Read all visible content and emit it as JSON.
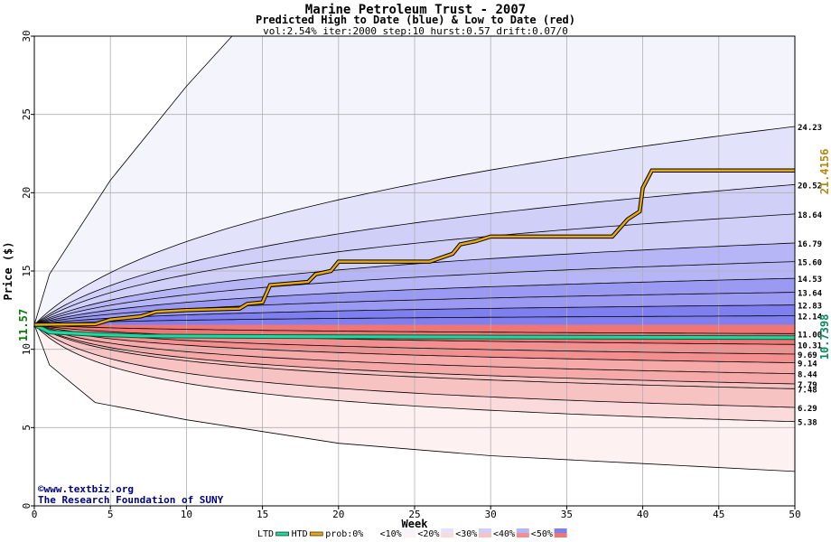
{
  "header": {
    "title": "Marine Petroleum Trust - 2007",
    "subtitle": "Predicted High to Date (blue) &  Low to Date (red)",
    "params": "vol:2.54% iter:2000 step:10 hurst:0.57 drift:0.07/0"
  },
  "footer": {
    "copyright": "©www.textbiz.org",
    "org": "The Research Foundation of SUNY"
  },
  "colors": {
    "upper_bands": [
      "#f4f4fc",
      "#e2e2fb",
      "#cfcff8",
      "#b6b6f6",
      "#9a9af3",
      "#7f7ff0"
    ],
    "lower_bands": [
      "#fdf1f1",
      "#fadada",
      "#f7c2c2",
      "#f5a9a9",
      "#f38f8f",
      "#f07676"
    ],
    "htd_line": "#e8a810",
    "ltd_line": "#20d8a0",
    "start_label": "#0a7a0a",
    "htd_label": "#b8860b",
    "ltd_label": "#0a8a5a"
  },
  "chart_data": {
    "type": "line",
    "title": "Marine Petroleum Trust - 2007",
    "xlabel": "Week",
    "ylabel": "Price ($)",
    "xlim": [
      0,
      50
    ],
    "ylim": [
      0,
      30
    ],
    "x_ticks": [
      0,
      5,
      10,
      15,
      20,
      25,
      30,
      35,
      40,
      45,
      50
    ],
    "y_ticks": [
      0,
      5,
      10,
      15,
      20,
      25,
      30
    ],
    "grid": true,
    "start_price": 11.57,
    "start_label": "11.57",
    "htd_final_label": "21.4156",
    "ltd_final_label": "10.7398",
    "quantile_labels": [
      {
        "label": "24.23",
        "value": 24.23
      },
      {
        "label": "20.52",
        "value": 20.52
      },
      {
        "label": "18.64",
        "value": 18.64
      },
      {
        "label": "16.79",
        "value": 16.79
      },
      {
        "label": "15.60",
        "value": 15.6
      },
      {
        "label": "14.53",
        "value": 14.53
      },
      {
        "label": "13.64",
        "value": 13.64
      },
      {
        "label": "12.83",
        "value": 12.83
      },
      {
        "label": "12.14",
        "value": 12.14
      },
      {
        "label": "11.00",
        "value": 11.0
      },
      {
        "label": "10.31",
        "value": 10.31
      },
      {
        "label": "9.69",
        "value": 9.69
      },
      {
        "label": "9.14",
        "value": 9.14
      },
      {
        "label": "8.44",
        "value": 8.44
      },
      {
        "label": "7.79",
        "value": 7.79
      },
      {
        "label": "7.48",
        "value": 7.48
      },
      {
        "label": "6.29",
        "value": 6.29
      },
      {
        "label": "5.38",
        "value": 5.38
      }
    ],
    "envelope": {
      "upper": [
        [
          0,
          11.57
        ],
        [
          1,
          14.8
        ],
        [
          5,
          20.8
        ],
        [
          10,
          26.8
        ],
        [
          13,
          30
        ]
      ],
      "lower": [
        [
          0,
          11.57
        ],
        [
          1,
          9.0
        ],
        [
          4,
          6.6
        ],
        [
          10,
          5.5
        ],
        [
          20,
          4.0
        ],
        [
          30,
          3.2
        ],
        [
          40,
          2.7
        ],
        [
          50,
          2.2
        ]
      ]
    },
    "series": [
      {
        "name": "HTD",
        "points": [
          [
            0,
            11.57
          ],
          [
            4,
            11.6
          ],
          [
            5,
            11.9
          ],
          [
            7,
            12.1
          ],
          [
            8,
            12.4
          ],
          [
            10,
            12.5
          ],
          [
            13.5,
            12.6
          ],
          [
            14,
            12.9
          ],
          [
            15,
            13.0
          ],
          [
            15.5,
            14.1
          ],
          [
            18,
            14.3
          ],
          [
            18.5,
            14.8
          ],
          [
            19.5,
            15.0
          ],
          [
            20,
            15.6
          ],
          [
            26,
            15.6
          ],
          [
            27.5,
            16.1
          ],
          [
            28,
            16.7
          ],
          [
            29,
            16.9
          ],
          [
            30,
            17.2
          ],
          [
            38,
            17.2
          ],
          [
            39,
            18.3
          ],
          [
            39.8,
            18.8
          ],
          [
            40,
            20.3
          ],
          [
            40.6,
            21.42
          ],
          [
            50,
            21.42
          ]
        ]
      },
      {
        "name": "LTD",
        "points": [
          [
            0,
            11.57
          ],
          [
            1,
            11.1
          ],
          [
            4,
            10.95
          ],
          [
            7,
            10.85
          ],
          [
            15,
            10.82
          ],
          [
            30,
            10.78
          ],
          [
            50,
            10.74
          ]
        ]
      }
    ]
  },
  "legend": [
    {
      "label": "LTD",
      "kind": "line",
      "color": "#20d8a0"
    },
    {
      "label": "HTD",
      "kind": "line",
      "color": "#e8a810"
    },
    {
      "label": "prob:0%",
      "kind": "swatch",
      "up": "#ffffff",
      "down": "#ffffff"
    },
    {
      "label": "<10%",
      "kind": "swatch",
      "up": "#f4f4fc",
      "down": "#fdf1f1"
    },
    {
      "label": "<20%",
      "kind": "swatch",
      "up": "#e2e2fb",
      "down": "#fadada"
    },
    {
      "label": "<30%",
      "kind": "swatch",
      "up": "#cfcff8",
      "down": "#f7c2c2"
    },
    {
      "label": "<40%",
      "kind": "swatch",
      "up": "#b6b6f6",
      "down": "#f38f8f"
    },
    {
      "label": "<50%",
      "kind": "swatch",
      "up": "#7f7ff0",
      "down": "#f07676"
    }
  ]
}
